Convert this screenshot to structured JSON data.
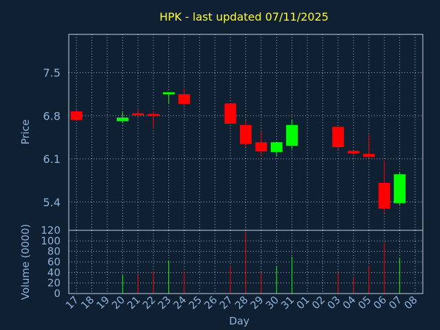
{
  "title": "HPK - last updated 07/11/2025",
  "colors": {
    "background": "#0f2033",
    "up": "#00ff00",
    "down": "#ff0000",
    "title": "#ffff33",
    "axis_text": "#8fb3d9",
    "grid": "#c8d4e3"
  },
  "chart_data": [
    {
      "type": "candlestick",
      "ylabel": "Price",
      "ylim": [
        4.94,
        8.12
      ],
      "yticks": [
        "7.5",
        "6.8",
        "6.1",
        "5.4"
      ],
      "ytick_values": [
        7.5,
        6.8,
        6.1,
        5.4
      ],
      "grid": true,
      "x": [
        "17",
        "18",
        "19",
        "20",
        "21",
        "22",
        "23",
        "24",
        "25",
        "26",
        "27",
        "28",
        "29",
        "30",
        "31",
        "01",
        "02",
        "03",
        "04",
        "05",
        "06",
        "07",
        "08"
      ],
      "candles": [
        {
          "x": "17",
          "open": 6.87,
          "high": 6.9,
          "low": 6.73,
          "close": 6.73
        },
        {
          "x": "20",
          "open": 6.71,
          "high": 6.87,
          "low": 6.68,
          "close": 6.77
        },
        {
          "x": "21",
          "open": 6.84,
          "high": 6.89,
          "low": 6.78,
          "close": 6.81
        },
        {
          "x": "22",
          "open": 6.83,
          "high": 6.87,
          "low": 6.59,
          "close": 6.8
        },
        {
          "x": "23",
          "open": 7.15,
          "high": 7.18,
          "low": 6.99,
          "close": 7.18
        },
        {
          "x": "24",
          "open": 7.15,
          "high": 7.24,
          "low": 6.97,
          "close": 6.99
        },
        {
          "x": "27",
          "open": 7.0,
          "high": 7.0,
          "low": 6.67,
          "close": 6.67
        },
        {
          "x": "28",
          "open": 6.65,
          "high": 6.72,
          "low": 6.3,
          "close": 6.34
        },
        {
          "x": "29",
          "open": 6.37,
          "high": 6.55,
          "low": 6.14,
          "close": 6.22
        },
        {
          "x": "30",
          "open": 6.21,
          "high": 6.38,
          "low": 6.14,
          "close": 6.37
        },
        {
          "x": "31",
          "open": 6.31,
          "high": 6.74,
          "low": 6.26,
          "close": 6.65
        },
        {
          "x": "03",
          "open": 6.62,
          "high": 6.62,
          "low": 6.25,
          "close": 6.29
        },
        {
          "x": "04",
          "open": 6.23,
          "high": 6.24,
          "low": 6.17,
          "close": 6.19
        },
        {
          "x": "05",
          "open": 6.18,
          "high": 6.49,
          "low": 6.12,
          "close": 6.13
        },
        {
          "x": "06",
          "open": 5.71,
          "high": 6.07,
          "low": 5.22,
          "close": 5.29
        },
        {
          "x": "07",
          "open": 5.38,
          "high": 5.89,
          "low": 5.35,
          "close": 5.85
        }
      ]
    },
    {
      "type": "bar",
      "ylabel": "Volume (0000)",
      "xlabel": "Day",
      "ylim": [
        0,
        120
      ],
      "yticks": [
        "0",
        "20",
        "40",
        "60",
        "80",
        "100",
        "120"
      ],
      "ytick_values": [
        0,
        20,
        40,
        60,
        80,
        100,
        120
      ],
      "grid": true,
      "categories": [
        "17",
        "18",
        "19",
        "20",
        "21",
        "22",
        "23",
        "24",
        "25",
        "26",
        "27",
        "28",
        "29",
        "30",
        "31",
        "01",
        "02",
        "03",
        "04",
        "05",
        "06",
        "07",
        "08"
      ],
      "bars": [
        {
          "x": "20",
          "value": 35,
          "dir": "up"
        },
        {
          "x": "21",
          "value": 35,
          "dir": "down"
        },
        {
          "x": "22",
          "value": 42,
          "dir": "down"
        },
        {
          "x": "23",
          "value": 63,
          "dir": "up"
        },
        {
          "x": "24",
          "value": 42,
          "dir": "down"
        },
        {
          "x": "27",
          "value": 52,
          "dir": "down"
        },
        {
          "x": "28",
          "value": 117,
          "dir": "down"
        },
        {
          "x": "29",
          "value": 40,
          "dir": "down"
        },
        {
          "x": "30",
          "value": 52,
          "dir": "up"
        },
        {
          "x": "31",
          "value": 70,
          "dir": "up"
        },
        {
          "x": "03",
          "value": 40,
          "dir": "down"
        },
        {
          "x": "04",
          "value": 31,
          "dir": "down"
        },
        {
          "x": "05",
          "value": 53,
          "dir": "down"
        },
        {
          "x": "06",
          "value": 96,
          "dir": "down"
        },
        {
          "x": "07",
          "value": 68,
          "dir": "up"
        }
      ]
    }
  ]
}
